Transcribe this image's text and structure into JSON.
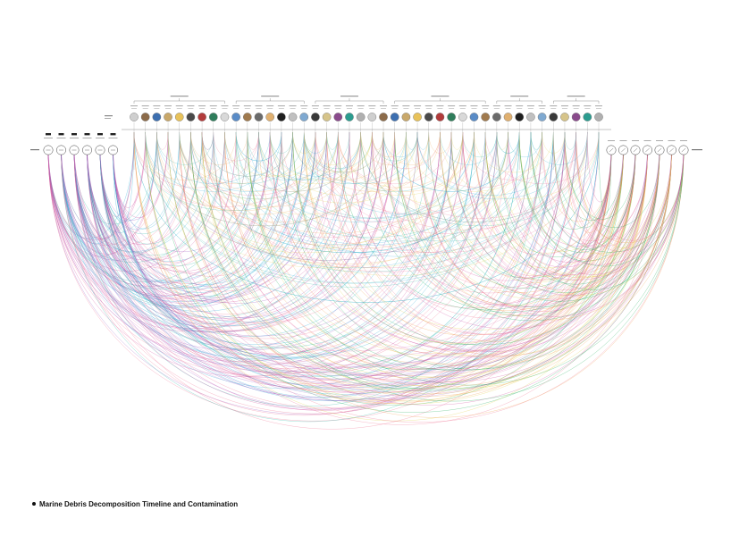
{
  "caption": {
    "title": "Marine Debris Decomposition Timeline and Contamination"
  },
  "palette": {
    "cyan": "#29a9d6",
    "teal": "#27b7a6",
    "green": "#1fae5a",
    "magenta": "#d24fa1",
    "pink": "#ee6f8f",
    "purple": "#9b5cc4",
    "orange": "#f0a04b",
    "yellow": "#e3d04a",
    "grey_line": "#b9b9b9",
    "dark_text": "#111111"
  },
  "diagram": {
    "left_nodes_count": 6,
    "top_items_count": 42,
    "right_nodes_count": 7
  }
}
